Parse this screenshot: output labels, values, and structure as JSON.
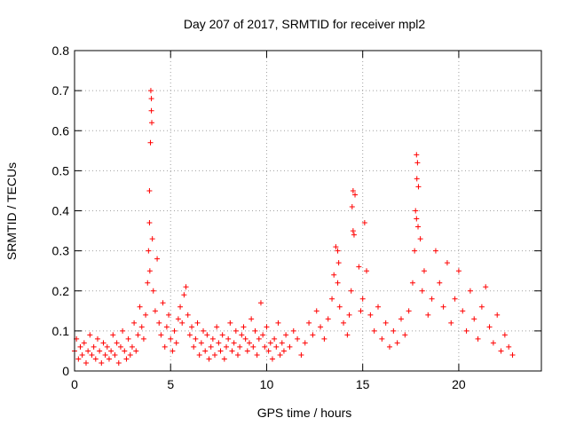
{
  "chart_data": {
    "type": "scatter",
    "title": "Day 207 of 2017, SRMTID for receiver mpl2",
    "xlabel": "GPS time / hours",
    "ylabel": "SRMTID / TECUs",
    "xlim": [
      0,
      24.3
    ],
    "ylim": [
      0,
      0.8
    ],
    "xticks": [
      0,
      5,
      10,
      15,
      20
    ],
    "xtick_labels": [
      "0",
      "5",
      "10",
      "15",
      "20"
    ],
    "yticks": [
      0,
      0.1,
      0.2,
      0.3,
      0.4,
      0.5,
      0.6,
      0.7,
      0.8
    ],
    "ytick_labels": [
      "0",
      "0.1",
      "0.2",
      "0.3",
      "0.4",
      "0.5",
      "0.6",
      "0.7",
      "0.8"
    ],
    "grid": true,
    "marker": "+",
    "color": "#ff0000",
    "series": [
      {
        "name": "SRMTID",
        "x": [
          0.0,
          0.1,
          0.2,
          0.3,
          0.4,
          0.5,
          0.6,
          0.7,
          0.8,
          0.9,
          1.0,
          1.1,
          1.2,
          1.3,
          1.4,
          1.5,
          1.6,
          1.7,
          1.8,
          1.9,
          2.0,
          2.1,
          2.2,
          2.3,
          2.4,
          2.5,
          2.6,
          2.7,
          2.8,
          2.9,
          3.0,
          3.1,
          3.2,
          3.3,
          3.4,
          3.5,
          3.6,
          3.7,
          3.8,
          3.85,
          3.9,
          3.95,
          4.0,
          4.05,
          4.1,
          4.2,
          4.3,
          4.4,
          4.5,
          4.6,
          4.7,
          4.8,
          4.9,
          5.0,
          5.1,
          5.2,
          5.3,
          5.4,
          5.5,
          5.6,
          5.7,
          5.8,
          5.9,
          6.0,
          6.1,
          6.2,
          6.3,
          6.4,
          6.5,
          6.6,
          6.7,
          6.8,
          6.9,
          7.0,
          7.1,
          7.2,
          7.3,
          7.4,
          7.5,
          7.6,
          7.7,
          7.8,
          7.9,
          8.0,
          8.1,
          8.2,
          8.3,
          8.4,
          8.5,
          8.6,
          8.7,
          8.8,
          8.9,
          9.0,
          9.1,
          9.2,
          9.3,
          9.4,
          9.5,
          9.6,
          9.7,
          9.8,
          9.9,
          10.0,
          10.1,
          10.2,
          10.3,
          10.4,
          10.5,
          10.6,
          10.7,
          10.8,
          10.9,
          11.0,
          11.2,
          11.4,
          11.6,
          11.8,
          12.0,
          12.2,
          12.4,
          12.6,
          12.8,
          13.0,
          13.2,
          13.4,
          13.5,
          13.6,
          13.7,
          13.8,
          14.0,
          14.2,
          14.3,
          14.4,
          14.5,
          14.6,
          14.8,
          14.9,
          15.0,
          15.1,
          15.2,
          15.4,
          15.6,
          15.8,
          16.0,
          16.2,
          16.4,
          16.6,
          16.8,
          17.0,
          17.2,
          17.4,
          17.6,
          17.7,
          17.8,
          17.85,
          17.9,
          18.0,
          18.1,
          18.2,
          18.4,
          18.6,
          18.8,
          19.0,
          19.2,
          19.4,
          19.6,
          19.8,
          20.0,
          20.2,
          20.4,
          20.6,
          20.8,
          21.0,
          21.2,
          21.4,
          21.6,
          21.8,
          22.0,
          22.2,
          22.4,
          22.6,
          22.8,
          3.97,
          4.0,
          4.02,
          3.9,
          3.92,
          14.5,
          14.45,
          14.55,
          17.8,
          17.82,
          17.75,
          17.88,
          13.7,
          13.75
        ],
        "y": [
          0.05,
          0.08,
          0.03,
          0.06,
          0.04,
          0.07,
          0.02,
          0.05,
          0.09,
          0.04,
          0.06,
          0.03,
          0.08,
          0.05,
          0.02,
          0.07,
          0.04,
          0.06,
          0.03,
          0.05,
          0.09,
          0.04,
          0.07,
          0.02,
          0.06,
          0.1,
          0.05,
          0.03,
          0.08,
          0.04,
          0.06,
          0.12,
          0.05,
          0.09,
          0.16,
          0.11,
          0.08,
          0.14,
          0.22,
          0.3,
          0.45,
          0.57,
          0.65,
          0.33,
          0.2,
          0.15,
          0.28,
          0.12,
          0.09,
          0.17,
          0.06,
          0.11,
          0.14,
          0.08,
          0.05,
          0.1,
          0.07,
          0.13,
          0.16,
          0.12,
          0.19,
          0.21,
          0.14,
          0.09,
          0.11,
          0.06,
          0.08,
          0.12,
          0.04,
          0.07,
          0.1,
          0.05,
          0.09,
          0.03,
          0.06,
          0.08,
          0.04,
          0.11,
          0.07,
          0.05,
          0.09,
          0.03,
          0.06,
          0.08,
          0.12,
          0.05,
          0.07,
          0.1,
          0.04,
          0.06,
          0.09,
          0.11,
          0.08,
          0.05,
          0.07,
          0.13,
          0.06,
          0.1,
          0.04,
          0.08,
          0.17,
          0.09,
          0.06,
          0.11,
          0.05,
          0.07,
          0.03,
          0.08,
          0.06,
          0.12,
          0.04,
          0.07,
          0.05,
          0.09,
          0.06,
          0.1,
          0.08,
          0.04,
          0.07,
          0.12,
          0.09,
          0.15,
          0.11,
          0.08,
          0.13,
          0.18,
          0.24,
          0.31,
          0.22,
          0.16,
          0.12,
          0.09,
          0.14,
          0.2,
          0.35,
          0.44,
          0.26,
          0.15,
          0.18,
          0.37,
          0.25,
          0.14,
          0.1,
          0.16,
          0.08,
          0.12,
          0.06,
          0.1,
          0.07,
          0.13,
          0.09,
          0.15,
          0.22,
          0.3,
          0.38,
          0.52,
          0.46,
          0.33,
          0.2,
          0.25,
          0.14,
          0.18,
          0.3,
          0.22,
          0.16,
          0.27,
          0.12,
          0.18,
          0.25,
          0.15,
          0.1,
          0.2,
          0.13,
          0.08,
          0.16,
          0.21,
          0.11,
          0.07,
          0.14,
          0.05,
          0.09,
          0.06,
          0.04,
          0.7,
          0.68,
          0.62,
          0.37,
          0.25,
          0.45,
          0.41,
          0.34,
          0.54,
          0.48,
          0.4,
          0.36,
          0.3,
          0.27
        ]
      }
    ]
  }
}
